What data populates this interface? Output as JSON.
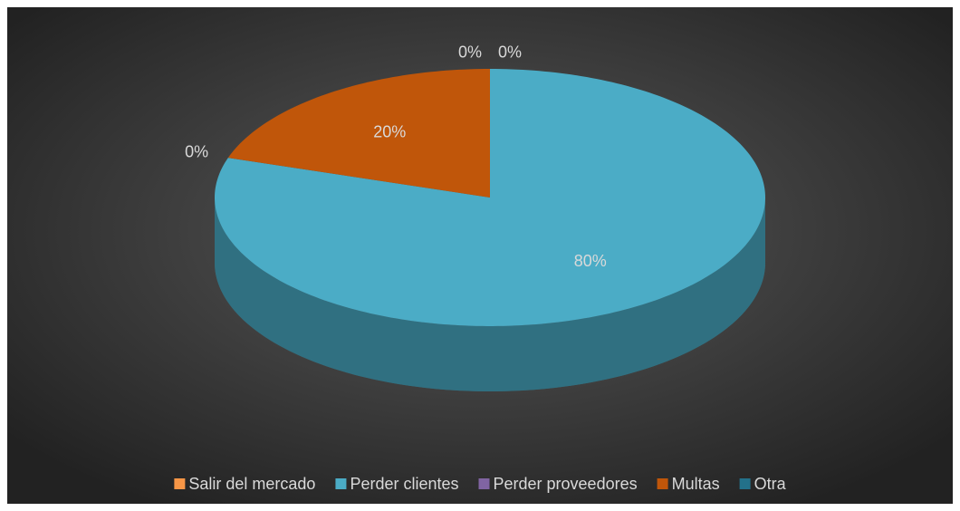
{
  "chart_data": {
    "type": "pie",
    "three_d": true,
    "categories": [
      "Salir del mercado",
      "Perder clientes",
      "Perder proveedores",
      "Multas",
      "Otra"
    ],
    "values": [
      0,
      80,
      0,
      20,
      0
    ],
    "value_labels": [
      "0%",
      "80%",
      "0%",
      "20%",
      "0%"
    ],
    "colors": [
      "#f79646",
      "#4bacc6",
      "#8064a2",
      "#c0560a",
      "#23718a"
    ],
    "legend": "bottom"
  }
}
